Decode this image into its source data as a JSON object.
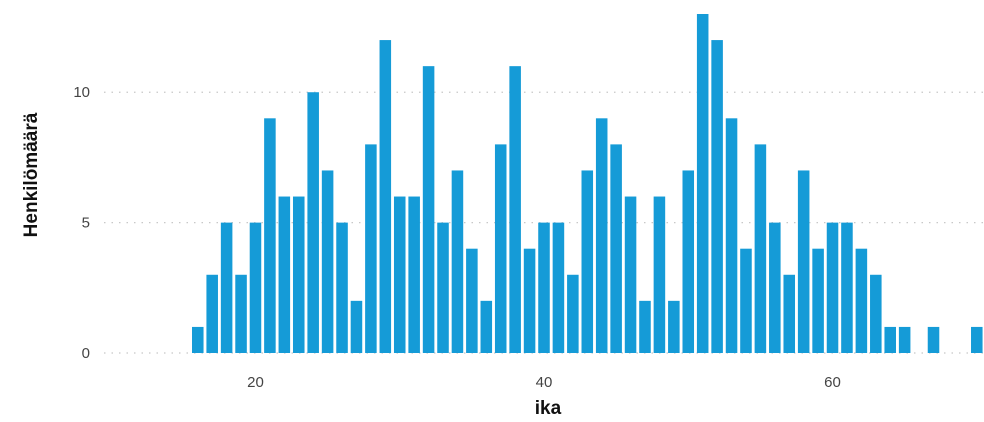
{
  "chart_data": {
    "type": "bar",
    "xlabel": "ika",
    "ylabel": "Henkilömäärä",
    "xlim": [
      9.5,
      70.5
    ],
    "ylim": [
      0,
      13
    ],
    "x_ticks": [
      20,
      40,
      60
    ],
    "y_ticks": [
      0,
      5,
      10
    ],
    "grid": "horizontal dotted",
    "colors": {
      "bar": "#159bd7",
      "grid": "#c8c8c8",
      "text": "#444444"
    },
    "x": [
      16,
      17,
      18,
      19,
      20,
      21,
      22,
      23,
      24,
      25,
      26,
      27,
      28,
      29,
      30,
      31,
      32,
      33,
      34,
      35,
      36,
      37,
      38,
      39,
      40,
      41,
      42,
      43,
      44,
      45,
      46,
      47,
      48,
      49,
      50,
      51,
      52,
      53,
      54,
      55,
      56,
      57,
      58,
      59,
      60,
      61,
      62,
      63,
      64,
      65,
      67,
      70
    ],
    "values": [
      1,
      3,
      5,
      3,
      5,
      9,
      6,
      6,
      10,
      7,
      5,
      2,
      8,
      12,
      6,
      6,
      11,
      5,
      7,
      4,
      2,
      8,
      11,
      4,
      5,
      5,
      3,
      7,
      9,
      8,
      6,
      2,
      6,
      2,
      7,
      13,
      12,
      9,
      4,
      8,
      5,
      3,
      7,
      4,
      5,
      5,
      4,
      3,
      1,
      1,
      1,
      1
    ]
  }
}
